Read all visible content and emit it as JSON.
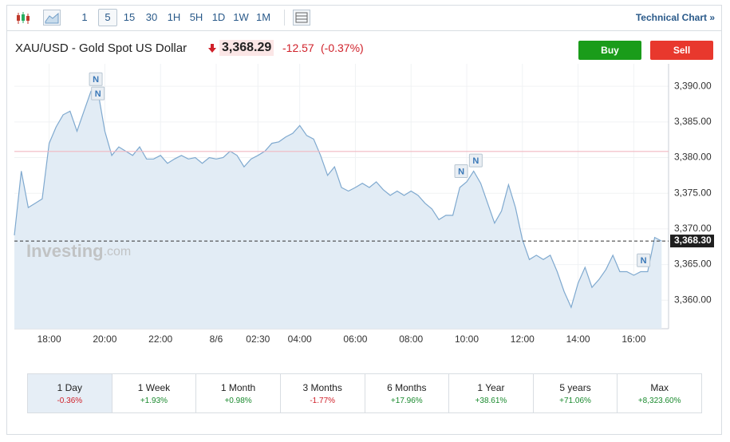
{
  "toolbar": {
    "intervals": [
      "1",
      "5",
      "15",
      "30",
      "1H",
      "5H",
      "1D",
      "1W",
      "1M"
    ],
    "selected_interval": "5",
    "link": "Technical Chart »"
  },
  "instrument": {
    "name": "XAU/USD - Gold Spot US Dollar",
    "price": "3,368.29",
    "change": "-12.57",
    "change_percent": "(-0.37%)"
  },
  "actions": [
    "Buy",
    "Sell"
  ],
  "chart_data": {
    "type": "area",
    "color": "#7fa9cf",
    "fill": "#e2ecf5",
    "values": [
      3369.1,
      3378.1,
      3373.0,
      3373.6,
      3374.2,
      3382.0,
      3384.3,
      3386.0,
      3386.5,
      3383.7,
      3386.5,
      3389.3,
      3389.3,
      3383.7,
      3380.3,
      3381.5,
      3380.9,
      3380.3,
      3381.5,
      3379.8,
      3379.8,
      3380.3,
      3379.2,
      3379.8,
      3380.3,
      3379.8,
      3380.0,
      3379.2,
      3380.0,
      3379.8,
      3380.0,
      3380.9,
      3380.3,
      3378.7,
      3379.8,
      3380.3,
      3380.9,
      3382.0,
      3382.2,
      3382.9,
      3383.4,
      3384.5,
      3383.1,
      3382.6,
      3380.3,
      3377.5,
      3378.7,
      3375.8,
      3375.3,
      3375.8,
      3376.4,
      3375.8,
      3376.6,
      3375.5,
      3374.7,
      3375.3,
      3374.7,
      3375.3,
      3374.7,
      3373.6,
      3372.8,
      3371.3,
      3371.9,
      3371.9,
      3375.8,
      3376.6,
      3378.1,
      3376.4,
      3373.6,
      3370.8,
      3372.5,
      3376.2,
      3373.0,
      3368.5,
      3365.7,
      3366.3,
      3365.7,
      3366.3,
      3364.0,
      3361.2,
      3359.0,
      3362.4,
      3364.6,
      3361.8,
      3362.9,
      3364.3,
      3366.3,
      3364.0,
      3364.0,
      3363.5,
      3364.0,
      3364.0,
      3368.8,
      3368.3
    ],
    "xlim": [
      0,
      94
    ],
    "xticks": [
      {
        "value": 5,
        "label": "18:00"
      },
      {
        "value": 13,
        "label": "20:00"
      },
      {
        "value": 21,
        "label": "22:00"
      },
      {
        "value": 29,
        "label": "8/6"
      },
      {
        "value": 35,
        "label": "02:30"
      },
      {
        "value": 41,
        "label": "04:00"
      },
      {
        "value": 49,
        "label": "06:00"
      },
      {
        "value": 57,
        "label": "08:00"
      },
      {
        "value": 65,
        "label": "10:00"
      },
      {
        "value": 73,
        "label": "12:00"
      },
      {
        "value": 81,
        "label": "14:00"
      },
      {
        "value": 89,
        "label": "16:00"
      }
    ],
    "ylim": [
      3356,
      3392.7
    ],
    "yticks": [
      {
        "value": 3360,
        "label": "3,360.00"
      },
      {
        "value": 3365,
        "label": "3,365.00"
      },
      {
        "value": 3370,
        "label": "3,370.00"
      },
      {
        "value": 3375,
        "label": "3,375.00"
      },
      {
        "value": 3380,
        "label": "3,380.00"
      },
      {
        "value": 3385,
        "label": "3,385.00"
      },
      {
        "value": 3390,
        "label": "3,390.00"
      }
    ],
    "grid": true,
    "reference_line": {
      "value": 3380.86,
      "color": "#f2b8c0"
    },
    "last_price": {
      "value": 3368.3,
      "label": "3,368.30"
    },
    "annotations": [
      {
        "text": "N",
        "x": 11.7,
        "y": 3391.0
      },
      {
        "text": "N",
        "x": 12.0,
        "y": 3389.0
      },
      {
        "text": "N",
        "x": 64.2,
        "y": 3378.1
      },
      {
        "text": "N",
        "x": 66.3,
        "y": 3379.6
      },
      {
        "text": "N",
        "x": 90.4,
        "y": 3365.6
      }
    ],
    "watermark": {
      "brand": "Investing",
      "suffix": ".com"
    }
  },
  "periods": [
    {
      "label": "1 Day",
      "change": "-0.36%"
    },
    {
      "label": "1 Week",
      "change": "+1.93%"
    },
    {
      "label": "1 Month",
      "change": "+0.98%"
    },
    {
      "label": "3 Months",
      "change": "-1.77%"
    },
    {
      "label": "6 Months",
      "change": "+17.96%"
    },
    {
      "label": "1 Year",
      "change": "+38.61%"
    },
    {
      "label": "5 years",
      "change": "+71.06%"
    },
    {
      "label": "Max",
      "change": "+8,323.60%"
    }
  ],
  "selected_period": "1 Day"
}
